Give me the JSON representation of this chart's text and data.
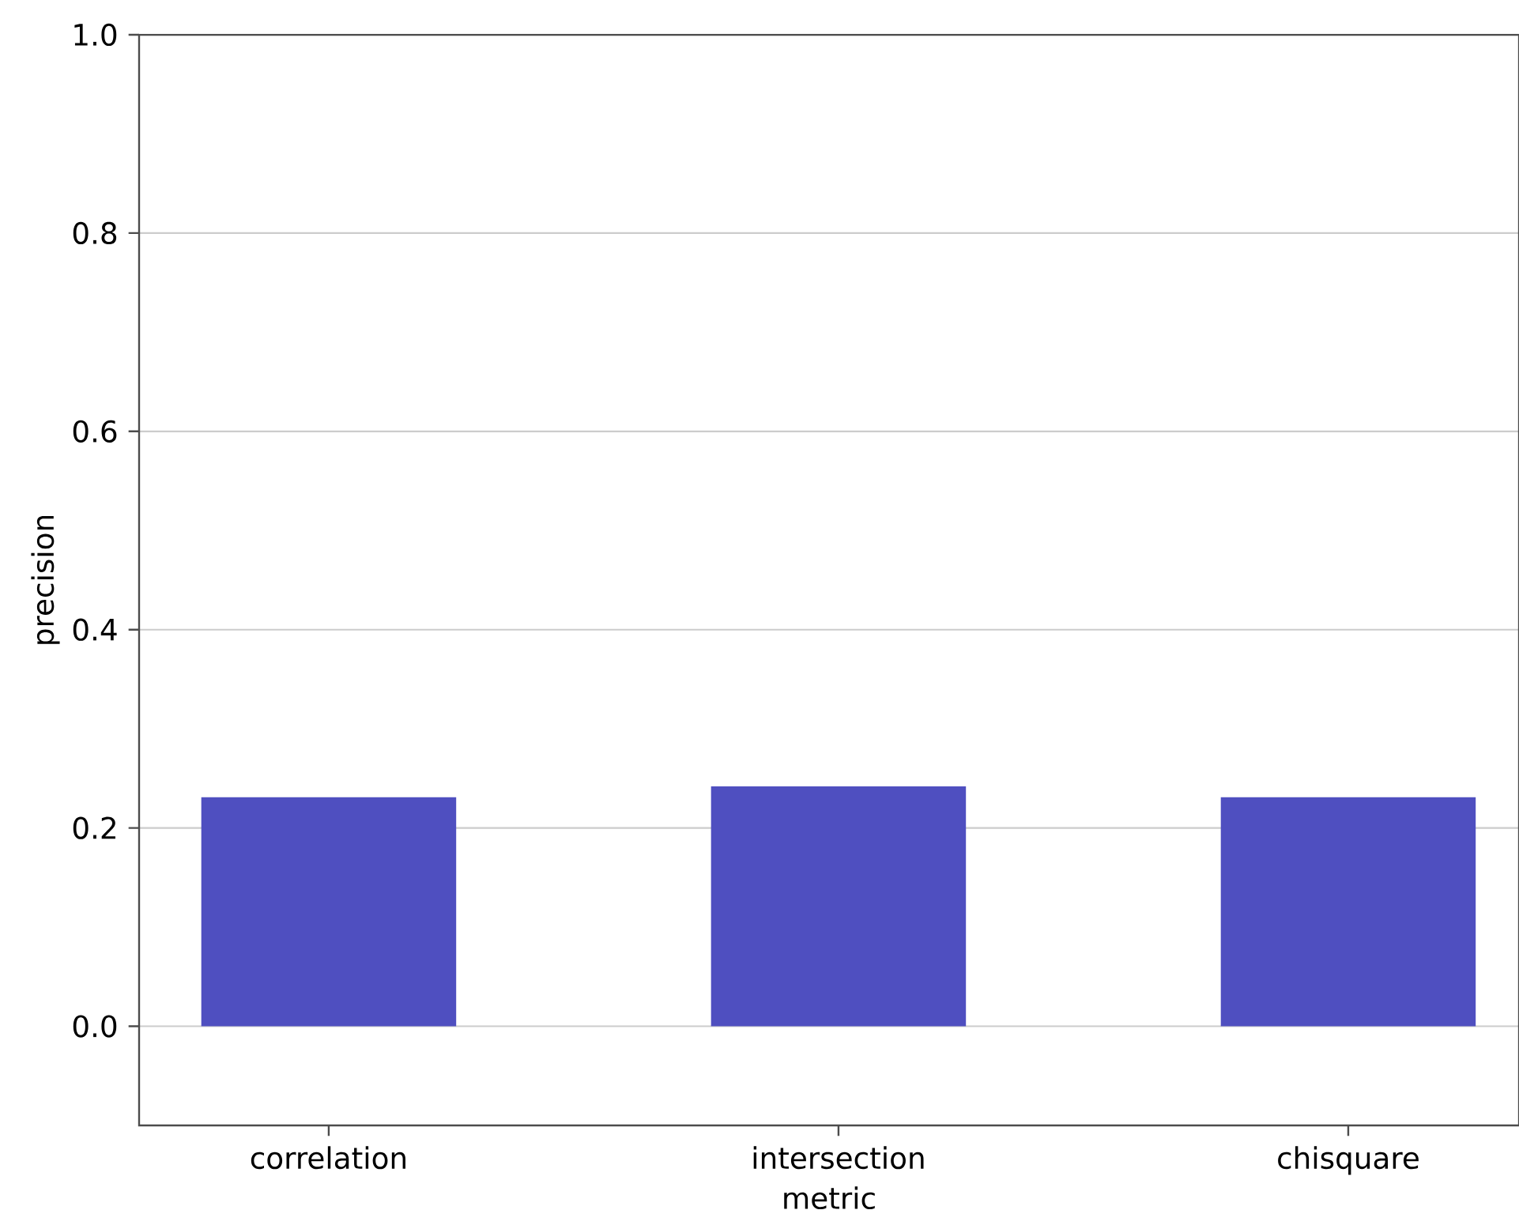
{
  "chart_data": {
    "type": "bar",
    "xlabel": "metric",
    "ylabel": "precision",
    "categories": [
      "correlation",
      "intersection",
      "chisquare"
    ],
    "values": [
      0.231,
      0.242,
      0.231
    ],
    "color": "#4f4fc0",
    "ylim": [
      -0.1,
      1.0
    ],
    "yticks": [
      {
        "value": 0,
        "label": "0.0"
      },
      0.2,
      0.4,
      0.6,
      0.8,
      {
        "value": 1,
        "label": "1.0"
      }
    ],
    "grid": "y"
  }
}
